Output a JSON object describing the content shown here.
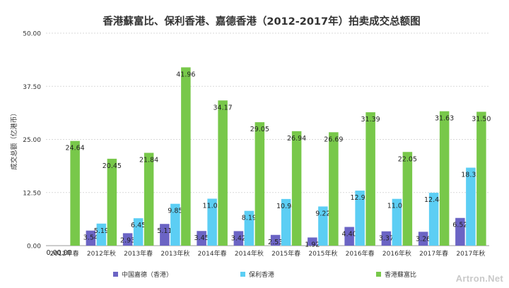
{
  "chart_data": {
    "type": "bar",
    "title": "香港蘇富比、保利香港、嘉德香港（2012-2017年）拍卖成交总额图",
    "xlabel": "",
    "ylabel": "成交总额（亿港币）",
    "ylim": [
      0,
      50
    ],
    "yticks": [
      "0.00",
      "12.50",
      "25.00",
      "37.50",
      "50.00"
    ],
    "grid": true,
    "legend_position": "bottom",
    "categories": [
      "2012年春",
      "2012年秋",
      "2013年春",
      "2013年秋",
      "2014年春",
      "2014年秋",
      "2015年春",
      "2015年秋",
      "2016年春",
      "2016年秋",
      "2017年春",
      "2017年秋"
    ],
    "series": [
      {
        "name": "中国嘉德（香港）",
        "color": "#6b64c4",
        "values": [
          0.0,
          3.54,
          2.93,
          5.11,
          3.45,
          3.42,
          2.53,
          1.92,
          4.4,
          3.37,
          3.26,
          6.52
        ],
        "labels": [
          "0.00",
          "3.54",
          "2.93",
          "5.11",
          "3.45",
          "3.42",
          "2.53",
          "1.92",
          "4.40",
          "3.37",
          "3.26",
          "6.52"
        ]
      },
      {
        "name": "保利香港",
        "color": "#5ccef4",
        "values": [
          0.0,
          5.19,
          6.45,
          9.85,
          11.05,
          8.19,
          10.98,
          9.22,
          12.95,
          11.01,
          12.44,
          18.35
        ],
        "labels": [
          "0.00",
          "5.19",
          "6.45",
          "9.85",
          "11.05",
          "8.19",
          "10.98",
          "9.22",
          "12.95",
          "11.01",
          "12.44",
          "18.35"
        ]
      },
      {
        "name": "香港蘇富比",
        "color": "#78c84a",
        "values": [
          24.64,
          20.45,
          21.84,
          41.96,
          34.17,
          29.05,
          26.94,
          26.69,
          31.39,
          22.05,
          31.63,
          31.5
        ],
        "labels": [
          "24.64",
          "20.45",
          "21.84",
          "41.96",
          "34.17",
          "29.05",
          "26.94",
          "26.69",
          "31.39",
          "22.05",
          "31.63",
          "31.50"
        ]
      }
    ]
  },
  "watermark": {
    "text": "Artron.Net"
  }
}
